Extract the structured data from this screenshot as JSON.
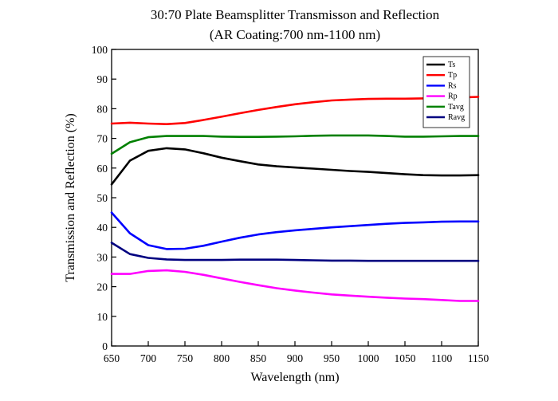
{
  "chart_data": {
    "type": "line",
    "title": "30:70 Plate Beamsplitter Transmisson and Reflection",
    "subtitle": "(AR Coating:700 nm-1100 nm)",
    "xlabel": "Wavelength (nm)",
    "ylabel": "Transmission and Reflection (%)",
    "xlim": [
      650,
      1150
    ],
    "ylim": [
      0,
      100
    ],
    "x_ticks": [
      650,
      700,
      750,
      800,
      850,
      900,
      950,
      1000,
      1050,
      1100,
      1150
    ],
    "y_ticks": [
      0,
      10,
      20,
      30,
      40,
      50,
      60,
      70,
      80,
      90,
      100
    ],
    "grid": false,
    "legend_position": "top-right",
    "x": [
      650,
      675,
      700,
      725,
      750,
      775,
      800,
      825,
      850,
      875,
      900,
      925,
      950,
      975,
      1000,
      1025,
      1050,
      1075,
      1100,
      1125,
      1150
    ],
    "series": [
      {
        "name": "Ts",
        "color": "#000000",
        "values": [
          54.5,
          62.5,
          65.8,
          66.7,
          66.3,
          65.0,
          63.5,
          62.3,
          61.2,
          60.6,
          60.2,
          59.8,
          59.4,
          59.0,
          58.7,
          58.3,
          57.9,
          57.6,
          57.5,
          57.5,
          57.6
        ]
      },
      {
        "name": "Tp",
        "color": "#ff0000",
        "values": [
          75.0,
          75.3,
          75.0,
          74.8,
          75.2,
          76.2,
          77.3,
          78.5,
          79.6,
          80.6,
          81.5,
          82.2,
          82.8,
          83.1,
          83.3,
          83.4,
          83.4,
          83.5,
          83.6,
          83.8,
          84.0
        ]
      },
      {
        "name": "Rs",
        "color": "#0000ff",
        "values": [
          45.0,
          38.0,
          34.0,
          32.7,
          32.8,
          33.8,
          35.2,
          36.5,
          37.6,
          38.4,
          39.0,
          39.5,
          40.0,
          40.4,
          40.8,
          41.2,
          41.5,
          41.7,
          41.9,
          42.0,
          42.0
        ]
      },
      {
        "name": "Rp",
        "color": "#ff00ff",
        "values": [
          24.3,
          24.3,
          25.3,
          25.5,
          25.0,
          24.0,
          22.8,
          21.6,
          20.5,
          19.5,
          18.7,
          18.0,
          17.4,
          17.0,
          16.6,
          16.3,
          16.0,
          15.8,
          15.5,
          15.2,
          15.2
        ]
      },
      {
        "name": "Tavg",
        "color": "#008000",
        "values": [
          64.8,
          68.7,
          70.4,
          70.8,
          70.8,
          70.8,
          70.6,
          70.5,
          70.5,
          70.6,
          70.7,
          70.9,
          71.0,
          71.0,
          71.0,
          70.8,
          70.6,
          70.6,
          70.7,
          70.8,
          70.8
        ]
      },
      {
        "name": "Ravg",
        "color": "#000080",
        "values": [
          34.8,
          31.0,
          29.7,
          29.2,
          29.0,
          29.0,
          29.0,
          29.1,
          29.1,
          29.1,
          29.0,
          28.9,
          28.8,
          28.8,
          28.7,
          28.7,
          28.7,
          28.7,
          28.7,
          28.7,
          28.7
        ]
      }
    ]
  }
}
